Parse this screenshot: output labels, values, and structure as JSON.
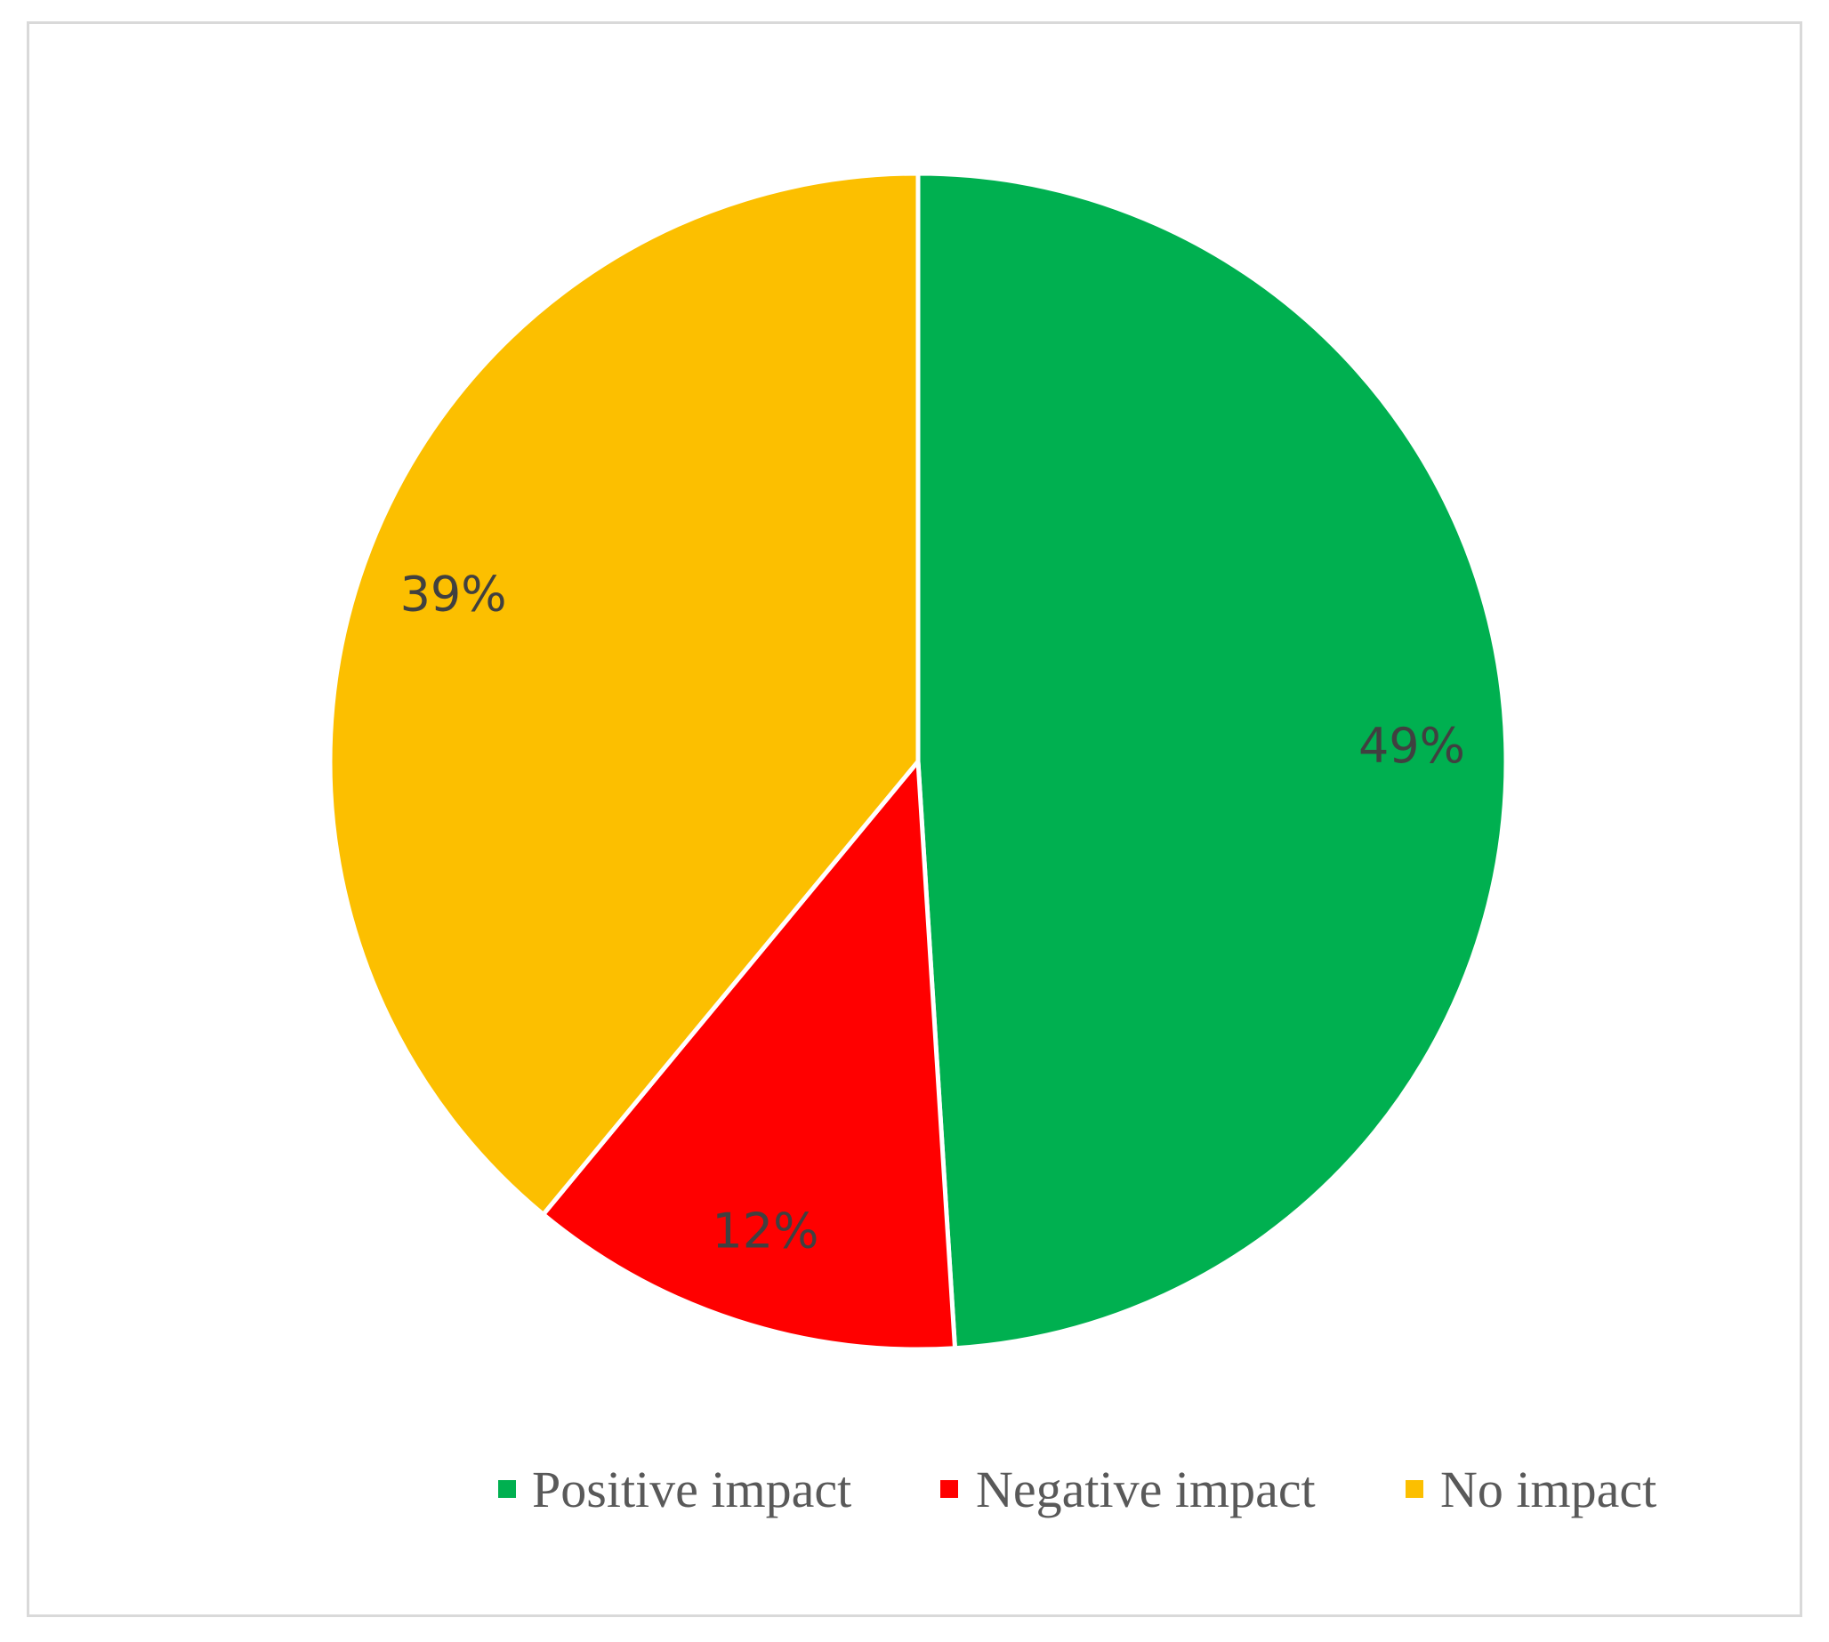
{
  "chart_data": {
    "type": "pie",
    "title": "",
    "categories": [
      "Positive impact",
      "Negative impact",
      "No impact"
    ],
    "values": [
      49,
      12,
      39
    ],
    "data_labels": [
      "49%",
      "12%",
      "39%"
    ],
    "colors": [
      "#00b050",
      "#ff0000",
      "#fcbf00"
    ],
    "start_angle_deg": 0,
    "direction": "clockwise",
    "legend": {
      "placement": "bottom",
      "entries": [
        {
          "label": "Positive impact",
          "color": "#00b050"
        },
        {
          "label": "Negative impact",
          "color": "#ff0000"
        },
        {
          "label": "No impact",
          "color": "#fcbf00"
        }
      ]
    }
  }
}
